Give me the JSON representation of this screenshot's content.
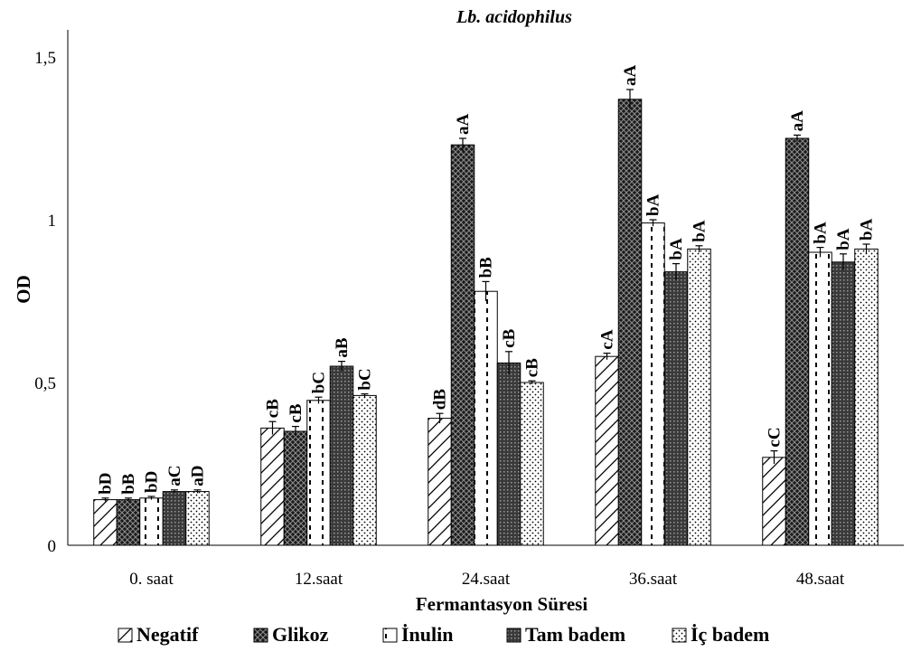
{
  "chart_data": {
    "type": "bar",
    "title": "Lb. acidophilus",
    "xlabel": "Fermantasyon Süresi",
    "ylabel": "OD",
    "ylim": [
      0,
      1.6
    ],
    "yticks": [
      {
        "value": 0,
        "label": "0"
      },
      {
        "value": 0.5,
        "label": "0,5"
      },
      {
        "value": 1,
        "label": "1"
      },
      {
        "value": 1.5,
        "label": "1,5"
      }
    ],
    "grid": false,
    "legend_position": "bottom",
    "categories": [
      "0. saat",
      "12.saat",
      "24.saat",
      "36.saat",
      "48.saat"
    ],
    "series": [
      {
        "name": "Negatif",
        "pattern": "diagonal",
        "values": [
          0.14,
          0.36,
          0.39,
          0.58,
          0.27
        ],
        "errors": [
          0.005,
          0.02,
          0.015,
          0.01,
          0.02
        ],
        "labels": [
          "bD",
          "cB",
          "dB",
          "cA",
          "cC"
        ]
      },
      {
        "name": "Glikoz",
        "pattern": "crosshatch",
        "values": [
          0.14,
          0.35,
          1.23,
          1.37,
          1.25
        ],
        "errors": [
          0.005,
          0.015,
          0.02,
          0.03,
          0.01
        ],
        "labels": [
          "bB",
          "cB",
          "aA",
          "aA",
          "aA"
        ]
      },
      {
        "name": "İnulin",
        "pattern": "dashed",
        "values": [
          0.145,
          0.445,
          0.78,
          0.99,
          0.9
        ],
        "errors": [
          0.005,
          0.01,
          0.03,
          0.01,
          0.015
        ],
        "labels": [
          "bD",
          "bC",
          "bB",
          "bA",
          "bA"
        ]
      },
      {
        "name": "Tam badem",
        "pattern": "dense-grid",
        "values": [
          0.165,
          0.55,
          0.56,
          0.84,
          0.87
        ],
        "errors": [
          0.005,
          0.015,
          0.035,
          0.025,
          0.025
        ],
        "labels": [
          "aC",
          "aB",
          "cB",
          "bA",
          "bA"
        ]
      },
      {
        "name": "İç badem",
        "pattern": "dotted",
        "values": [
          0.165,
          0.46,
          0.5,
          0.91,
          0.91
        ],
        "errors": [
          0.005,
          0.005,
          0.005,
          0.01,
          0.015
        ],
        "labels": [
          "aD",
          "bC",
          "cB",
          "bA",
          "bA"
        ]
      }
    ]
  }
}
